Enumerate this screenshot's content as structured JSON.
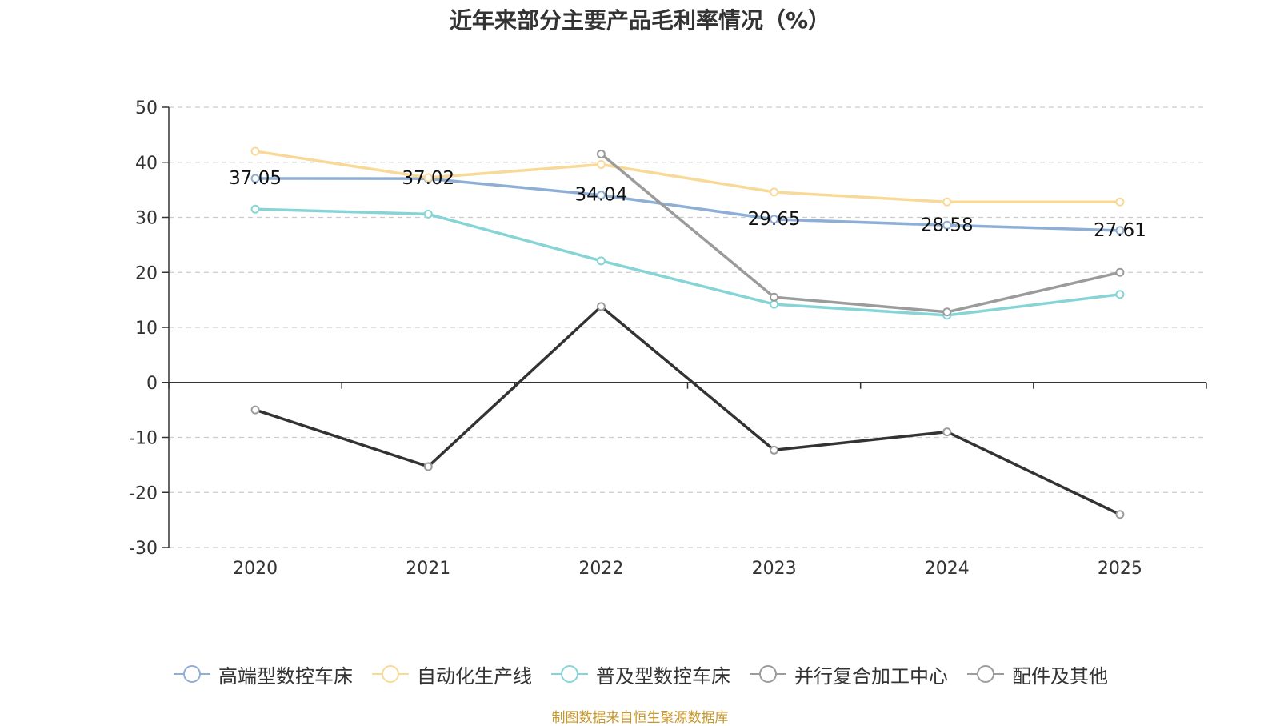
{
  "chart_data": {
    "type": "line",
    "title": "近年来部分主要产品毛利率情况（%）",
    "categories": [
      "2020",
      "2021",
      "2022",
      "2023",
      "2024",
      "2025"
    ],
    "ylim": [
      -30,
      50
    ],
    "yticks": [
      50,
      40,
      30,
      20,
      10,
      0,
      -10,
      -20,
      -30
    ],
    "grid": true,
    "legend_position": "bottom",
    "series": [
      {
        "name": "高端型数控车床",
        "color": "#8eaed6",
        "values": [
          37.05,
          37.02,
          34.04,
          29.65,
          28.58,
          27.61
        ],
        "labels": [
          "37.05",
          "37.02",
          "34.04",
          "29.65",
          "28.58",
          "27.61"
        ]
      },
      {
        "name": "自动化生产线",
        "color": "#f9d998",
        "values": [
          42,
          37.2,
          39.6,
          34.6,
          32.8,
          32.8
        ]
      },
      {
        "name": "普及型数控车床",
        "color": "#86d4d6",
        "values": [
          31.5,
          30.6,
          22.1,
          14.2,
          12.2,
          16.0
        ]
      },
      {
        "name": "并行复合加工中心",
        "color": "#9b9b9b",
        "values": [
          null,
          null,
          41.5,
          15.5,
          12.8,
          20.0
        ]
      },
      {
        "name": "配件及其他",
        "color": "#333333",
        "legend_color": "#9b9b9b",
        "values": [
          -5.0,
          -15.3,
          13.8,
          -12.3,
          -9.0,
          -24.0
        ]
      }
    ]
  },
  "source_note": "制图数据来自恒生聚源数据库"
}
